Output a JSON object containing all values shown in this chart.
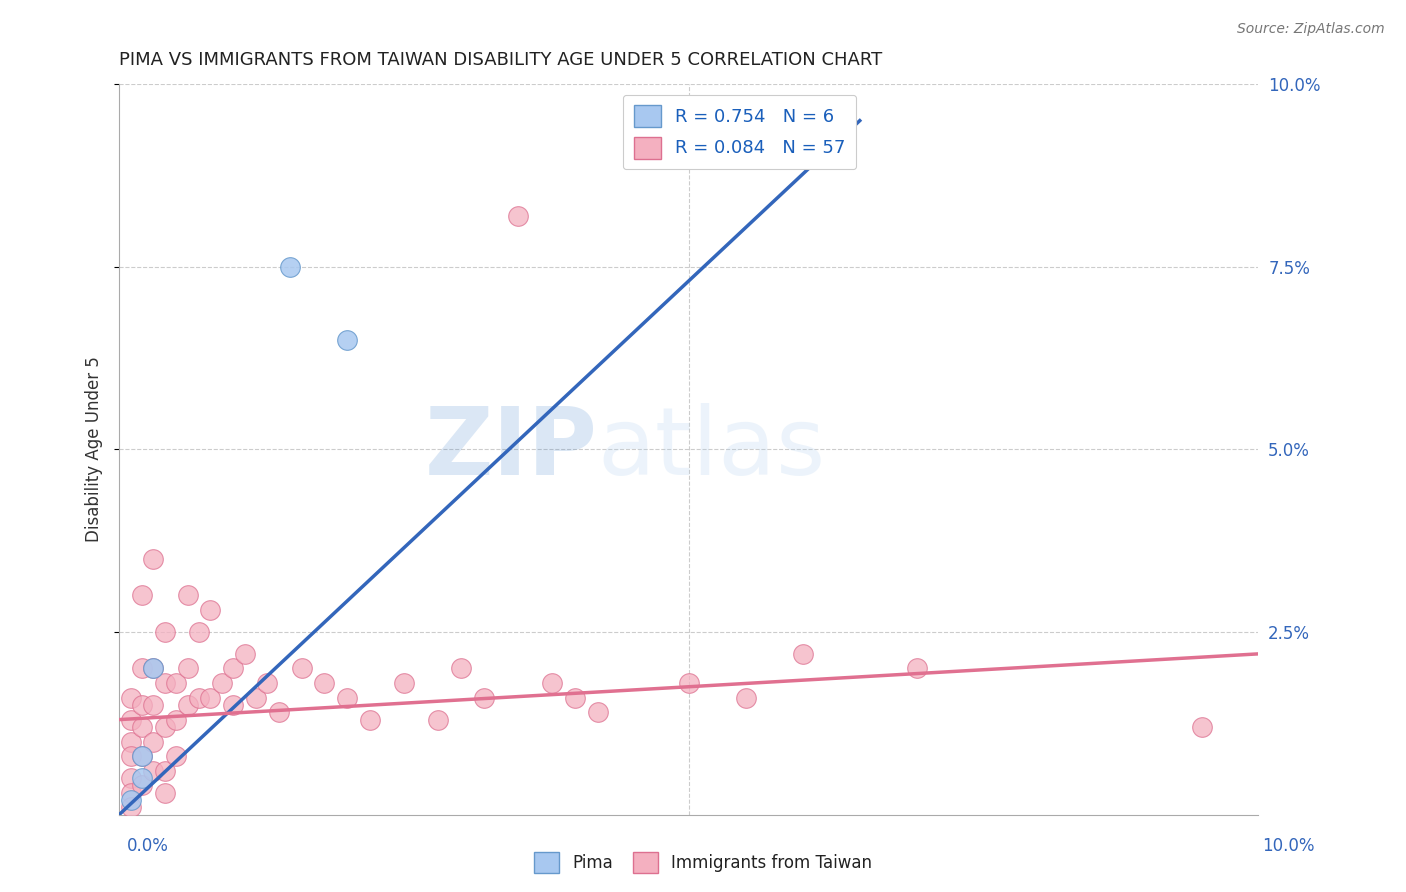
{
  "title": "PIMA VS IMMIGRANTS FROM TAIWAN DISABILITY AGE UNDER 5 CORRELATION CHART",
  "source_text": "Source: ZipAtlas.com",
  "ylabel": "Disability Age Under 5",
  "xlim": [
    0.0,
    0.1
  ],
  "ylim": [
    0.0,
    0.1
  ],
  "background_color": "#ffffff",
  "grid_color": "#cccccc",
  "pima_color": "#a8c8f0",
  "pima_edge_color": "#6699cc",
  "pima_R": 0.754,
  "pima_N": 6,
  "pima_line_color": "#3366bb",
  "pima_scatter": [
    [
      0.001,
      0.002
    ],
    [
      0.002,
      0.005
    ],
    [
      0.002,
      0.008
    ],
    [
      0.003,
      0.02
    ],
    [
      0.015,
      0.075
    ],
    [
      0.02,
      0.065
    ]
  ],
  "pima_trend_x": [
    0.0,
    0.065
  ],
  "pima_trend_y": [
    0.0,
    0.095
  ],
  "taiwan_color": "#f4b0c0",
  "taiwan_edge_color": "#dd7090",
  "taiwan_R": 0.084,
  "taiwan_N": 57,
  "taiwan_line_color": "#e07090",
  "taiwan_scatter": [
    [
      0.001,
      0.016
    ],
    [
      0.001,
      0.013
    ],
    [
      0.001,
      0.01
    ],
    [
      0.001,
      0.008
    ],
    [
      0.001,
      0.005
    ],
    [
      0.001,
      0.003
    ],
    [
      0.001,
      0.001
    ],
    [
      0.002,
      0.03
    ],
    [
      0.002,
      0.02
    ],
    [
      0.002,
      0.015
    ],
    [
      0.002,
      0.012
    ],
    [
      0.002,
      0.008
    ],
    [
      0.002,
      0.004
    ],
    [
      0.003,
      0.035
    ],
    [
      0.003,
      0.02
    ],
    [
      0.003,
      0.015
    ],
    [
      0.003,
      0.01
    ],
    [
      0.003,
      0.006
    ],
    [
      0.004,
      0.025
    ],
    [
      0.004,
      0.018
    ],
    [
      0.004,
      0.012
    ],
    [
      0.004,
      0.006
    ],
    [
      0.004,
      0.003
    ],
    [
      0.005,
      0.018
    ],
    [
      0.005,
      0.013
    ],
    [
      0.005,
      0.008
    ],
    [
      0.006,
      0.03
    ],
    [
      0.006,
      0.02
    ],
    [
      0.006,
      0.015
    ],
    [
      0.007,
      0.025
    ],
    [
      0.007,
      0.016
    ],
    [
      0.008,
      0.028
    ],
    [
      0.008,
      0.016
    ],
    [
      0.009,
      0.018
    ],
    [
      0.01,
      0.02
    ],
    [
      0.01,
      0.015
    ],
    [
      0.011,
      0.022
    ],
    [
      0.012,
      0.016
    ],
    [
      0.013,
      0.018
    ],
    [
      0.014,
      0.014
    ],
    [
      0.016,
      0.02
    ],
    [
      0.018,
      0.018
    ],
    [
      0.02,
      0.016
    ],
    [
      0.022,
      0.013
    ],
    [
      0.025,
      0.018
    ],
    [
      0.028,
      0.013
    ],
    [
      0.03,
      0.02
    ],
    [
      0.032,
      0.016
    ],
    [
      0.035,
      0.082
    ],
    [
      0.038,
      0.018
    ],
    [
      0.04,
      0.016
    ],
    [
      0.042,
      0.014
    ],
    [
      0.05,
      0.018
    ],
    [
      0.055,
      0.016
    ],
    [
      0.06,
      0.022
    ],
    [
      0.07,
      0.02
    ],
    [
      0.095,
      0.012
    ]
  ],
  "taiwan_trend_x": [
    0.0,
    0.1
  ],
  "taiwan_trend_y": [
    0.013,
    0.022
  ],
  "legend_box_color": "#ffffff",
  "legend_border_color": "#cccccc",
  "pima_label": "Pima",
  "taiwan_label": "Immigrants from Taiwan",
  "watermark_zip": "ZIP",
  "watermark_atlas": "atlas",
  "watermark_color": "#c8dff5"
}
